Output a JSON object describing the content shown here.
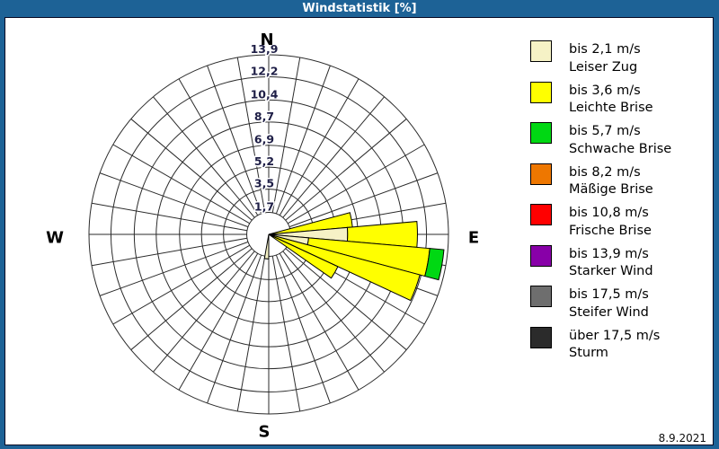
{
  "window": {
    "title": "Windstatistik [%]",
    "titlebar_color": "#1D6296",
    "date": "8.9.2021"
  },
  "chart_data": {
    "type": "windrose",
    "title": "Windstatistik [%]",
    "unit": "%",
    "max_value": 13.9,
    "ring_values": [
      1.7,
      3.5,
      5.2,
      6.9,
      8.7,
      10.4,
      12.2,
      13.9
    ],
    "ring_tick_labels": [
      "1,7",
      "3,5",
      "5,2",
      "6,9",
      "8,7",
      "10,4",
      "12,2",
      "13,9"
    ],
    "spoke_step_deg": 10,
    "petal_width_deg": 10,
    "grid_color": "#2b2b2b",
    "tick_label_color": "#1E1E46",
    "compass_labels": {
      "north": "N",
      "east": "E",
      "south": "S",
      "west": "W"
    },
    "speed_classes": [
      {
        "id": "c1",
        "label_speed": "bis 2,1 m/s",
        "label_name": "Leiser Zug",
        "color": "#F6F2C6"
      },
      {
        "id": "c2",
        "label_speed": "bis 3,6 m/s",
        "label_name": "Leichte Brise",
        "color": "#FFFF00"
      },
      {
        "id": "c3",
        "label_speed": "bis 5,7 m/s",
        "label_name": "Schwache Brise",
        "color": "#00D813"
      },
      {
        "id": "c4",
        "label_speed": "bis 8,2 m/s",
        "label_name": "Mäßige Brise",
        "color": "#EE7700"
      },
      {
        "id": "c5",
        "label_speed": "bis 10,8 m/s",
        "label_name": "Frische Brise",
        "color": "#FF0000"
      },
      {
        "id": "c6",
        "label_speed": "bis 13,9 m/s",
        "label_name": "Starker Wind",
        "color": "#8800A8"
      },
      {
        "id": "c7",
        "label_speed": "bis 17,5 m/s",
        "label_name": "Steifer Wind",
        "color": "#6E6E6E"
      },
      {
        "id": "c8",
        "label_speed": "über 17,5 m/s",
        "label_name": "Sturm",
        "color": "#2B2B2B"
      }
    ],
    "petals": [
      {
        "direction_deg": 80,
        "segments": [
          {
            "class_id": "c2",
            "from": 0,
            "to": 6.5
          }
        ]
      },
      {
        "direction_deg": 90,
        "segments": [
          {
            "class_id": "c1",
            "from": 0,
            "to": 6.1
          },
          {
            "class_id": "c2",
            "from": 6.1,
            "to": 11.5
          }
        ]
      },
      {
        "direction_deg": 100,
        "segments": [
          {
            "class_id": "c1",
            "from": 0,
            "to": 3.1
          },
          {
            "class_id": "c2",
            "from": 3.1,
            "to": 12.5
          },
          {
            "class_id": "c3",
            "from": 12.5,
            "to": 13.6
          }
        ]
      },
      {
        "direction_deg": 110,
        "segments": [
          {
            "class_id": "c2",
            "from": 0,
            "to": 12.1
          }
        ]
      },
      {
        "direction_deg": 120,
        "segments": [
          {
            "class_id": "c2",
            "from": 0,
            "to": 5.9
          }
        ]
      },
      {
        "direction_deg": 185,
        "segments": [
          {
            "class_id": "c1",
            "from": 0,
            "to": 1.9
          }
        ]
      }
    ]
  }
}
